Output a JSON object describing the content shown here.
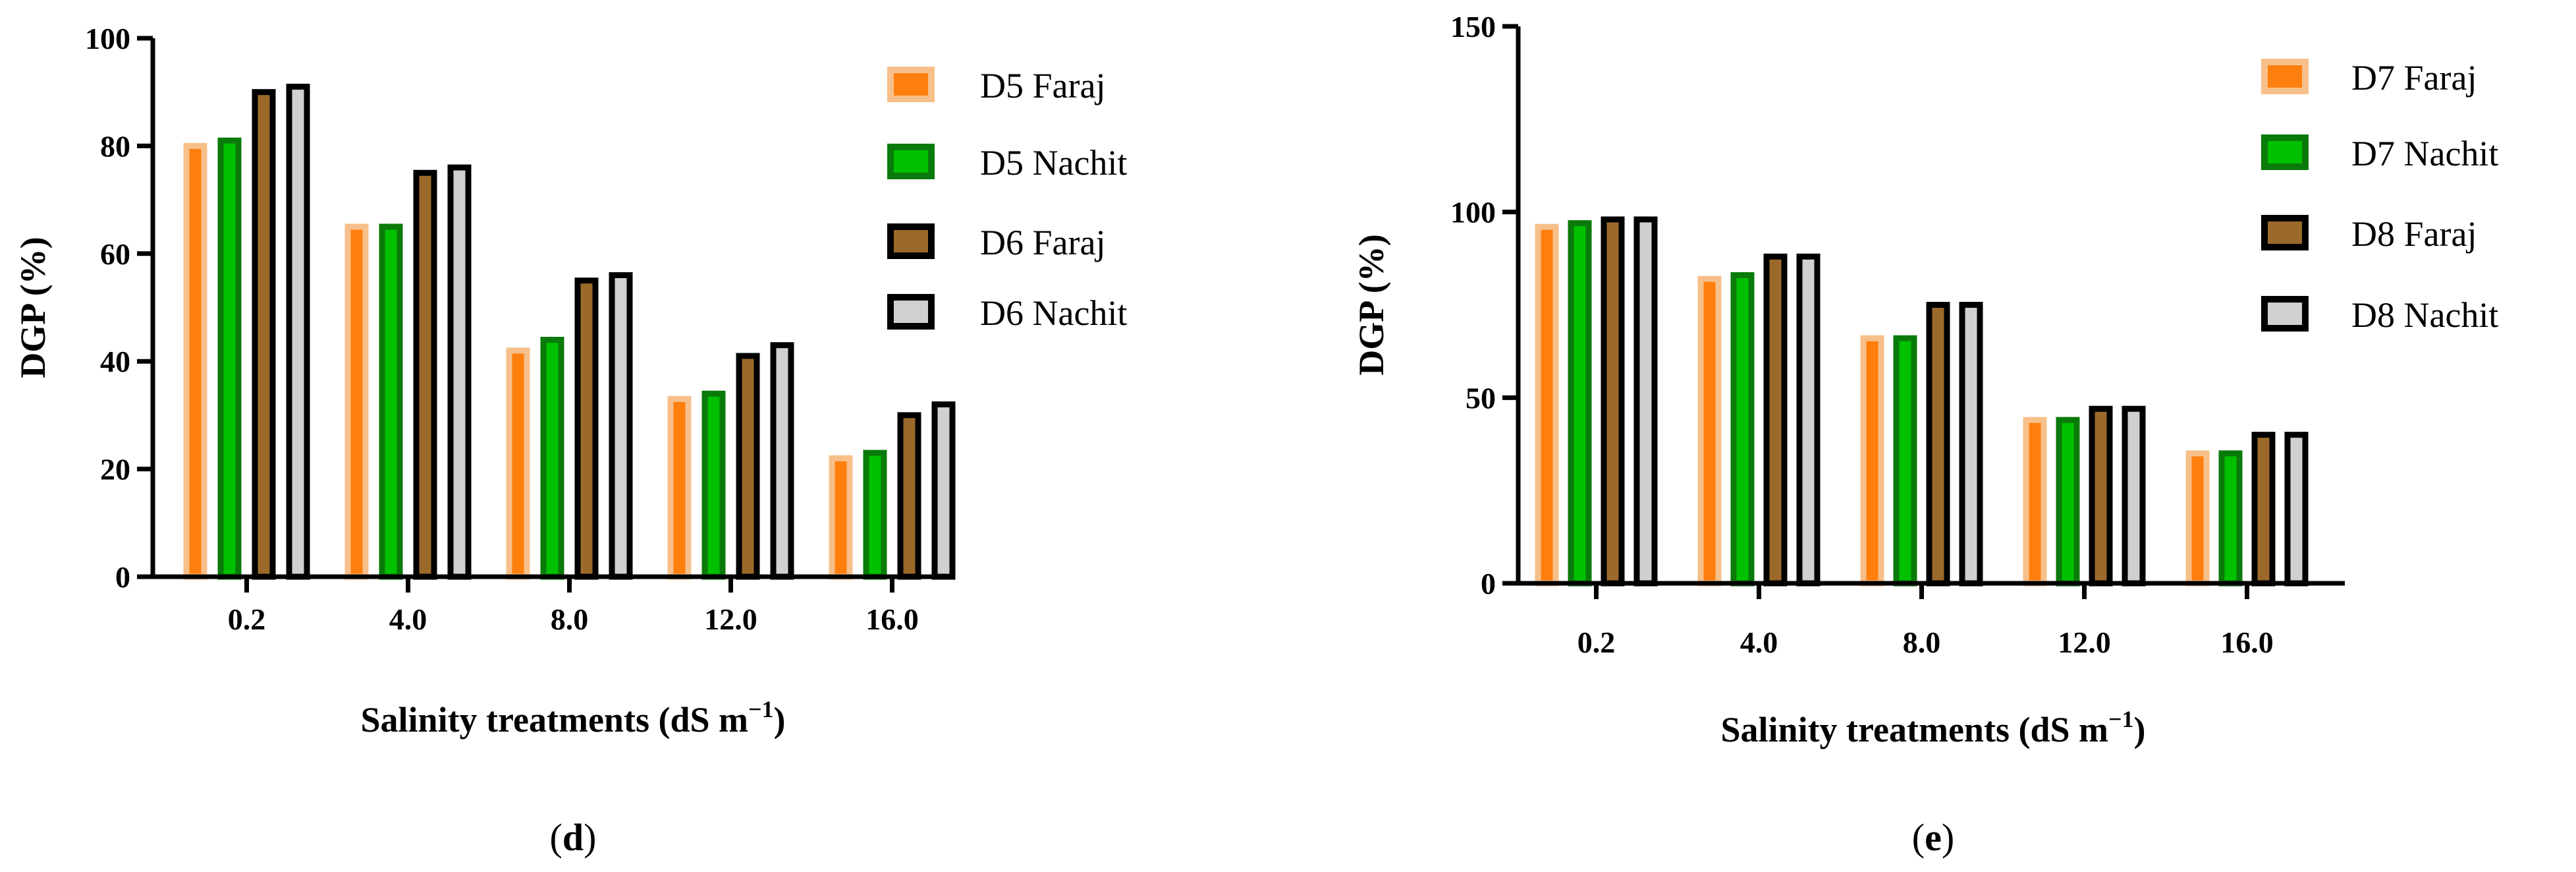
{
  "chart_data": [
    {
      "type": "bar",
      "panel_label": "d",
      "categories": [
        "0.2",
        "4.0",
        "8.0",
        "12.0",
        "16.0"
      ],
      "xlabel": "Salinity treatments (dS m",
      "xlabel_sup": "−1",
      "xlabel_end": ")",
      "ylabel": "DGP (%)",
      "ylim": [
        0,
        100
      ],
      "yticks": [
        0,
        20,
        40,
        60,
        80,
        100
      ],
      "legend_position": "top-right",
      "series": [
        {
          "name": "D5 Faraj",
          "fill": "#ff7f0e",
          "edge": "#f7c08a",
          "values": [
            80,
            65,
            42,
            33,
            22
          ]
        },
        {
          "name": "D5 Nachit",
          "fill": "#00c000",
          "edge": "#0a7a0a",
          "values": [
            81,
            65,
            44,
            34,
            23
          ]
        },
        {
          "name": "D6 Faraj",
          "fill": "#9b6a2a",
          "edge": "#000000",
          "values": [
            90,
            75,
            55,
            41,
            30
          ]
        },
        {
          "name": "D6 Nachit",
          "fill": "#d0d0d0",
          "edge": "#000000",
          "values": [
            91,
            76,
            56,
            43,
            32
          ]
        }
      ]
    },
    {
      "type": "bar",
      "panel_label": "e",
      "categories": [
        "0.2",
        "4.0",
        "8.0",
        "12.0",
        "16.0"
      ],
      "xlabel": "Salinity treatments (dS m",
      "xlabel_sup": "−1",
      "xlabel_end": ")",
      "ylabel": "DGP (%)",
      "ylim": [
        0,
        150
      ],
      "yticks": [
        0,
        50,
        100,
        150
      ],
      "legend_position": "top-right",
      "series": [
        {
          "name": "D7 Faraj",
          "fill": "#ff7f0e",
          "edge": "#f7c08a",
          "values": [
            96,
            82,
            66,
            44,
            35
          ]
        },
        {
          "name": "D7 Nachit",
          "fill": "#00c000",
          "edge": "#0a7a0a",
          "values": [
            97,
            83,
            66,
            44,
            35
          ]
        },
        {
          "name": "D8 Faraj",
          "fill": "#9b6a2a",
          "edge": "#000000",
          "values": [
            98,
            88,
            75,
            47,
            40
          ]
        },
        {
          "name": "D8 Nachit",
          "fill": "#d0d0d0",
          "edge": "#000000",
          "values": [
            98,
            88,
            75,
            47,
            40
          ]
        }
      ]
    }
  ]
}
